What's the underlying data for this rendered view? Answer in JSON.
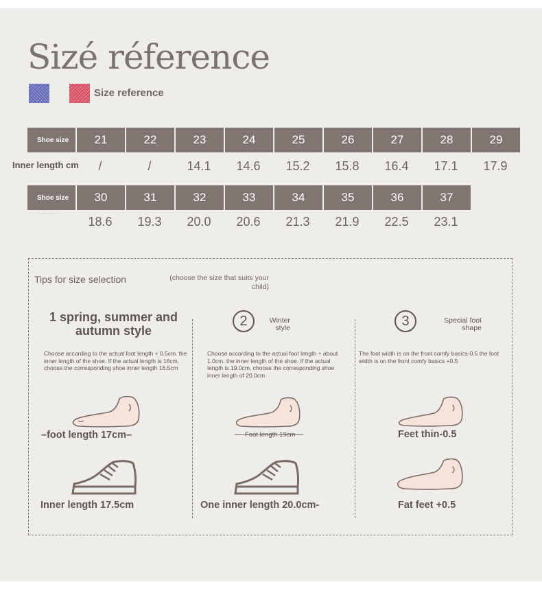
{
  "title": "Sizé réference",
  "legend": {
    "label": "Size reference",
    "colors": [
      "#6d73c0",
      "#e2566a"
    ]
  },
  "table": {
    "header_label": "Shoe size",
    "inner_label": "Inner length cm",
    "row1_sizes": [
      "21",
      "22",
      "23",
      "24",
      "25",
      "26",
      "27",
      "28",
      "29"
    ],
    "row1_lengths": [
      "/",
      "/",
      "14.1",
      "14.6",
      "15.2",
      "15.8",
      "16.4",
      "17.1",
      "17.9"
    ],
    "row2_sizes": [
      "30",
      "31",
      "32",
      "33",
      "34",
      "35",
      "36",
      "37"
    ],
    "row2_lengths": [
      "18.6",
      "19.3",
      "20.0",
      "20.6",
      "21.3",
      "21.9",
      "22.5",
      "23.1"
    ]
  },
  "tips": {
    "title": "Tips for size selection",
    "subtitle": "(choose the size that suits your child)",
    "col1": {
      "heading": "1 spring, summer and autumn style",
      "desc": "Choose according to the actual foot length + 0.5cm. the inner length of the shoe. If the actual length is 16cm, choose the corresponding shoe inner length 16.5cm",
      "foot_caption": "–foot length 17cm–",
      "shoe_caption": "Inner length 17.5cm"
    },
    "col2": {
      "number": "2",
      "heading": "Winter style",
      "desc": "Choose according to the actual foot length + about 1.0cm. the inner length of the shoe. If the actual length is 19.0cm, choose the corresponding shoe inner length of 20.0cm",
      "foot_caption": "Foot length 19cm",
      "shoe_caption": "One inner length 20.0cm-"
    },
    "col3": {
      "number": "3",
      "heading": "Special foot shape",
      "desc": "The foot width is on the front comfy basics-0.5 the foot width is on the front comfy basics +0.5",
      "thin_caption": "Feet thin-0.5",
      "fat_caption": "Fat feet +0.5"
    }
  },
  "icons": [
    "foot-icon",
    "sneaker-icon"
  ]
}
